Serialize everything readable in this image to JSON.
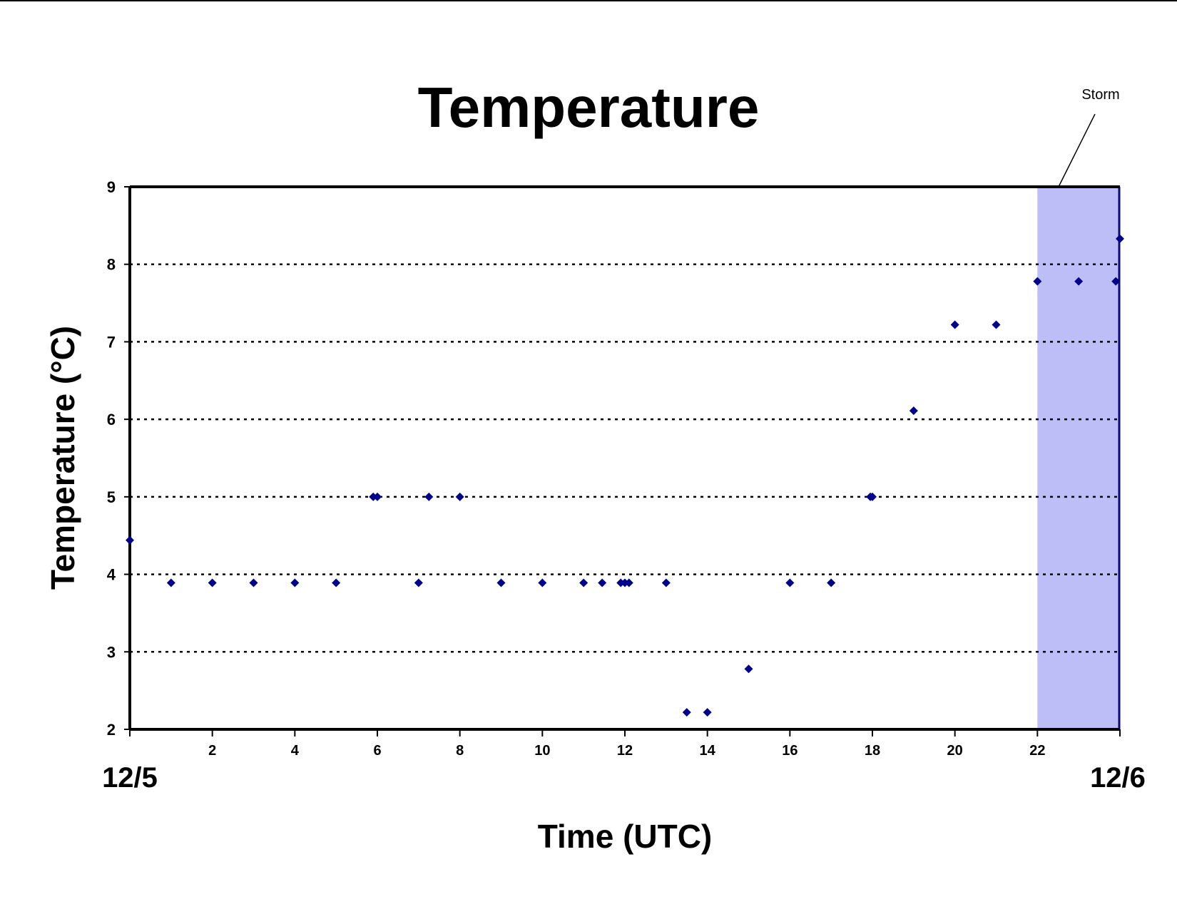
{
  "chart_data": {
    "type": "scatter",
    "title": "Temperature",
    "xlabel": "Time (UTC)",
    "ylabel": "Temperature (°C)",
    "xlim": [
      0,
      24
    ],
    "ylim": [
      2,
      9
    ],
    "x_ticks": [
      0,
      2,
      4,
      6,
      8,
      10,
      12,
      14,
      16,
      18,
      20,
      22,
      24
    ],
    "x_tick_labels": [
      "",
      "2",
      "4",
      "6",
      "8",
      "10",
      "12",
      "14",
      "16",
      "18",
      "20",
      "22",
      ""
    ],
    "y_ticks": [
      2,
      3,
      4,
      5,
      6,
      7,
      8,
      9
    ],
    "y_tick_labels": [
      "2",
      "3",
      "4",
      "5",
      "6",
      "7",
      "8",
      "9"
    ],
    "date_labels": {
      "start": "12/5",
      "end": "12/6"
    },
    "grid": "horizontal dotted",
    "shaded_region": {
      "x_start": 22,
      "x_end": 24,
      "label": "Storm"
    },
    "colors": {
      "marker": "#00008B",
      "shade": "#BDBDF7",
      "axis": "#000000"
    },
    "series": [
      {
        "marker": "diamond",
        "points": [
          [
            0,
            4.44
          ],
          [
            1,
            3.89
          ],
          [
            2,
            3.89
          ],
          [
            3,
            3.89
          ],
          [
            4,
            3.89
          ],
          [
            5,
            3.89
          ],
          [
            5.9,
            5.0
          ],
          [
            6.0,
            5.0
          ],
          [
            7,
            3.89
          ],
          [
            7.25,
            5.0
          ],
          [
            8,
            5.0
          ],
          [
            9,
            3.89
          ],
          [
            10,
            3.89
          ],
          [
            11,
            3.89
          ],
          [
            11.45,
            3.89
          ],
          [
            11.9,
            3.89
          ],
          [
            12.0,
            3.89
          ],
          [
            12.1,
            3.89
          ],
          [
            13,
            3.89
          ],
          [
            13.5,
            2.22
          ],
          [
            14,
            2.22
          ],
          [
            15,
            2.78
          ],
          [
            16,
            3.89
          ],
          [
            17,
            3.89
          ],
          [
            17.95,
            5.0
          ],
          [
            18.0,
            5.0
          ],
          [
            19,
            6.11
          ],
          [
            20,
            7.22
          ],
          [
            21,
            7.22
          ],
          [
            22,
            7.78
          ],
          [
            23,
            7.78
          ],
          [
            23.9,
            7.78
          ],
          [
            24,
            8.33
          ]
        ]
      }
    ]
  }
}
